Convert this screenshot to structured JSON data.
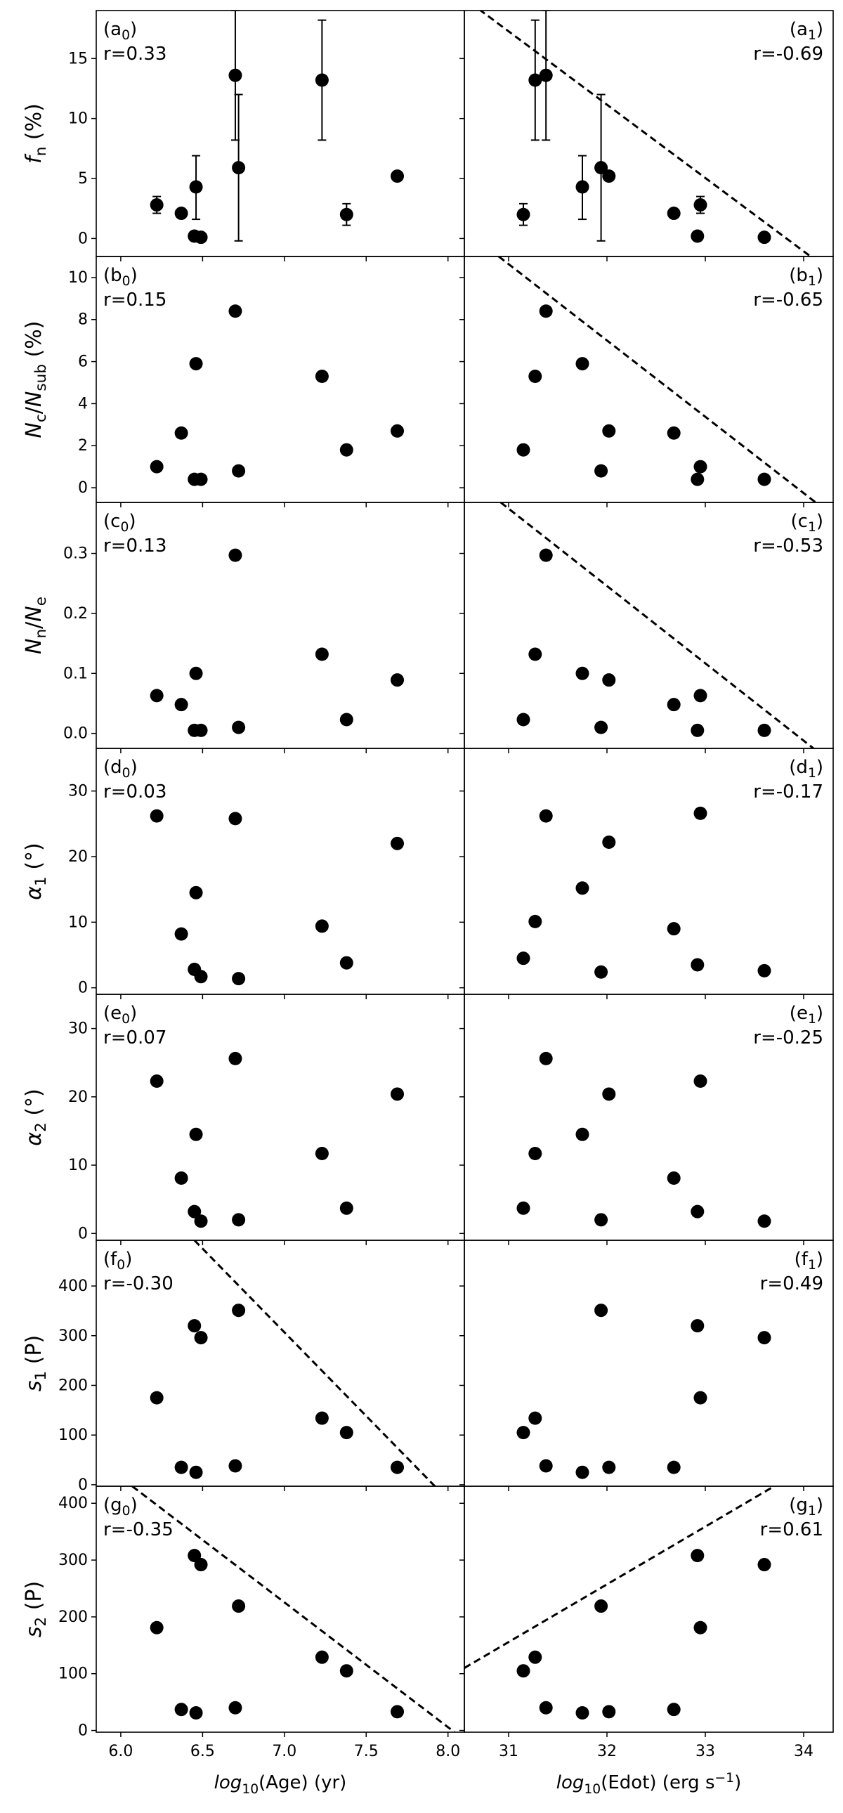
{
  "figure": {
    "x_axis_labels": {
      "left": "log10(Age) (yr)",
      "right": "log10(Edot) (erg s^-1)"
    }
  },
  "chart_data": [
    {
      "id": "a0",
      "panel": "(a0)",
      "r": "r=0.33",
      "type": "scatter",
      "ylabel": "f_n (%)",
      "ylim": [
        -1.5,
        19
      ],
      "yticks": [
        0,
        5,
        10,
        15
      ],
      "xlim": [
        5.85,
        8.1
      ],
      "xticks": [
        6.0,
        6.5,
        7.0,
        7.5,
        8.0
      ],
      "points": [
        {
          "x": 6.22,
          "y": 2.8,
          "err": [
            0.7,
            0.7
          ]
        },
        {
          "x": 6.37,
          "y": 2.1
        },
        {
          "x": 6.45,
          "y": 0.2
        },
        {
          "x": 6.46,
          "y": 4.3,
          "err": [
            2.7,
            2.6
          ]
        },
        {
          "x": 6.49,
          "y": 0.1
        },
        {
          "x": 6.7,
          "y": 13.6,
          "err": [
            5.4,
            5.4
          ]
        },
        {
          "x": 6.72,
          "y": 5.9,
          "err": [
            6.1,
            6.1
          ]
        },
        {
          "x": 7.23,
          "y": 13.2,
          "err": [
            5.0,
            5.0
          ]
        },
        {
          "x": 7.38,
          "y": 2.0,
          "err": [
            0.9,
            0.9
          ]
        },
        {
          "x": 7.69,
          "y": 5.2
        }
      ]
    },
    {
      "id": "a1",
      "panel": "(a1)",
      "r": "r=-0.69",
      "type": "scatter",
      "ylim": [
        -1.5,
        19
      ],
      "yticks": [
        0,
        5,
        10,
        15
      ],
      "xlim": [
        30.55,
        34.3
      ],
      "xticks": [
        31,
        32,
        33,
        34
      ],
      "fit_line": [
        [
          30.7,
          19.1
        ],
        [
          34.12,
          -1.8
        ]
      ],
      "points": [
        {
          "x": 31.15,
          "y": 2.0,
          "err": [
            0.9,
            0.9
          ]
        },
        {
          "x": 31.27,
          "y": 13.2,
          "err": [
            5.0,
            5.0
          ]
        },
        {
          "x": 31.38,
          "y": 13.6,
          "err": [
            5.4,
            5.4
          ]
        },
        {
          "x": 31.75,
          "y": 4.3,
          "err": [
            2.7,
            2.6
          ]
        },
        {
          "x": 31.94,
          "y": 5.9,
          "err": [
            6.1,
            6.1
          ]
        },
        {
          "x": 32.02,
          "y": 5.2
        },
        {
          "x": 32.68,
          "y": 2.1
        },
        {
          "x": 32.92,
          "y": 0.2
        },
        {
          "x": 32.95,
          "y": 2.8,
          "err": [
            0.7,
            0.7
          ]
        },
        {
          "x": 33.6,
          "y": 0.1
        }
      ]
    },
    {
      "id": "b0",
      "panel": "(b0)",
      "r": "r=0.15",
      "type": "scatter",
      "ylabel": "N_c/N_sub (%)",
      "ylim": [
        -0.7,
        11.0
      ],
      "yticks": [
        0,
        2,
        4,
        6,
        8,
        10
      ],
      "xlim": [
        5.85,
        8.1
      ],
      "xticks": [
        6.0,
        6.5,
        7.0,
        7.5,
        8.0
      ],
      "points": [
        {
          "x": 6.22,
          "y": 1.0
        },
        {
          "x": 6.37,
          "y": 2.6
        },
        {
          "x": 6.45,
          "y": 0.4
        },
        {
          "x": 6.46,
          "y": 5.9
        },
        {
          "x": 6.49,
          "y": 0.4
        },
        {
          "x": 6.7,
          "y": 8.4
        },
        {
          "x": 6.72,
          "y": 0.8
        },
        {
          "x": 7.23,
          "y": 5.3
        },
        {
          "x": 7.38,
          "y": 1.8
        },
        {
          "x": 7.69,
          "y": 2.7
        }
      ]
    },
    {
      "id": "b1",
      "panel": "(b1)",
      "r": "r=-0.65",
      "type": "scatter",
      "ylim": [
        -0.7,
        11.0
      ],
      "yticks": [
        0,
        2,
        4,
        6,
        8,
        10
      ],
      "xlim": [
        30.55,
        34.3
      ],
      "xticks": [
        31,
        32,
        33,
        34
      ],
      "fit_line": [
        [
          30.9,
          11.0
        ],
        [
          34.15,
          -0.8
        ]
      ],
      "points": [
        {
          "x": 31.15,
          "y": 1.8
        },
        {
          "x": 31.27,
          "y": 5.3
        },
        {
          "x": 31.38,
          "y": 8.4
        },
        {
          "x": 31.75,
          "y": 5.9
        },
        {
          "x": 31.94,
          "y": 0.8
        },
        {
          "x": 32.02,
          "y": 2.7
        },
        {
          "x": 32.68,
          "y": 2.6
        },
        {
          "x": 32.92,
          "y": 0.4
        },
        {
          "x": 32.95,
          "y": 1.0
        },
        {
          "x": 33.6,
          "y": 0.4
        }
      ]
    },
    {
      "id": "c0",
      "panel": "(c0)",
      "r": "r=0.13",
      "type": "scatter",
      "ylabel": "N_n/N_e",
      "ylim": [
        -0.025,
        0.385
      ],
      "yticks": [
        0.0,
        0.1,
        0.2,
        0.3
      ],
      "yticklabels": [
        "0.0",
        "0.1",
        "0.2",
        "0.3"
      ],
      "xlim": [
        5.85,
        8.1
      ],
      "xticks": [
        6.0,
        6.5,
        7.0,
        7.5,
        8.0
      ],
      "points": [
        {
          "x": 6.22,
          "y": 0.063
        },
        {
          "x": 6.37,
          "y": 0.048
        },
        {
          "x": 6.45,
          "y": 0.005
        },
        {
          "x": 6.46,
          "y": 0.1
        },
        {
          "x": 6.49,
          "y": 0.005
        },
        {
          "x": 6.7,
          "y": 0.297
        },
        {
          "x": 6.72,
          "y": 0.01
        },
        {
          "x": 7.23,
          "y": 0.132
        },
        {
          "x": 7.38,
          "y": 0.023
        },
        {
          "x": 7.69,
          "y": 0.089
        }
      ]
    },
    {
      "id": "c1",
      "panel": "(c1)",
      "r": "r=-0.53",
      "type": "scatter",
      "ylim": [
        -0.025,
        0.385
      ],
      "yticks": [
        0.0,
        0.1,
        0.2,
        0.3
      ],
      "yticklabels": [
        "0.0",
        "0.1",
        "0.2",
        "0.3"
      ],
      "xlim": [
        30.55,
        34.3
      ],
      "xticks": [
        31,
        32,
        33,
        34
      ],
      "fit_line": [
        [
          30.92,
          0.385
        ],
        [
          34.1,
          -0.025
        ]
      ],
      "points": [
        {
          "x": 31.15,
          "y": 0.023
        },
        {
          "x": 31.27,
          "y": 0.132
        },
        {
          "x": 31.38,
          "y": 0.297
        },
        {
          "x": 31.75,
          "y": 0.1
        },
        {
          "x": 31.94,
          "y": 0.01
        },
        {
          "x": 32.02,
          "y": 0.089
        },
        {
          "x": 32.68,
          "y": 0.048
        },
        {
          "x": 32.92,
          "y": 0.005
        },
        {
          "x": 32.95,
          "y": 0.063
        },
        {
          "x": 33.6,
          "y": 0.005
        }
      ]
    },
    {
      "id": "d0",
      "panel": "(d0)",
      "r": "r=0.03",
      "type": "scatter",
      "ylabel": "α_1 (°)",
      "ylim": [
        -1.0,
        36.5
      ],
      "yticks": [
        0,
        10,
        20,
        30
      ],
      "xlim": [
        5.85,
        8.1
      ],
      "xticks": [
        6.0,
        6.5,
        7.0,
        7.5,
        8.0
      ],
      "points": [
        {
          "x": 6.22,
          "y": 26.2
        },
        {
          "x": 6.37,
          "y": 8.2
        },
        {
          "x": 6.45,
          "y": 2.8
        },
        {
          "x": 6.46,
          "y": 14.5
        },
        {
          "x": 6.49,
          "y": 1.7
        },
        {
          "x": 6.7,
          "y": 25.8
        },
        {
          "x": 6.72,
          "y": 1.4
        },
        {
          "x": 7.23,
          "y": 9.4
        },
        {
          "x": 7.38,
          "y": 3.8
        },
        {
          "x": 7.69,
          "y": 22.0
        }
      ]
    },
    {
      "id": "d1",
      "panel": "(d1)",
      "r": "r=-0.17",
      "type": "scatter",
      "ylim": [
        -1.0,
        36.5
      ],
      "yticks": [
        0,
        10,
        20,
        30
      ],
      "xlim": [
        30.55,
        34.3
      ],
      "xticks": [
        31,
        32,
        33,
        34
      ],
      "points": [
        {
          "x": 31.15,
          "y": 4.5
        },
        {
          "x": 31.27,
          "y": 10.1
        },
        {
          "x": 31.38,
          "y": 26.2
        },
        {
          "x": 31.75,
          "y": 15.2
        },
        {
          "x": 31.94,
          "y": 2.4
        },
        {
          "x": 32.02,
          "y": 22.2
        },
        {
          "x": 32.68,
          "y": 9.0
        },
        {
          "x": 32.92,
          "y": 3.5
        },
        {
          "x": 32.95,
          "y": 26.6
        },
        {
          "x": 33.6,
          "y": 2.6
        }
      ]
    },
    {
      "id": "e0",
      "panel": "(e0)",
      "r": "r=0.07",
      "type": "scatter",
      "ylabel": "α_2 (°)",
      "ylim": [
        -1.0,
        35.0
      ],
      "yticks": [
        0,
        10,
        20,
        30
      ],
      "xlim": [
        5.85,
        8.1
      ],
      "xticks": [
        6.0,
        6.5,
        7.0,
        7.5,
        8.0
      ],
      "points": [
        {
          "x": 6.22,
          "y": 22.3
        },
        {
          "x": 6.37,
          "y": 8.1
        },
        {
          "x": 6.45,
          "y": 3.2
        },
        {
          "x": 6.46,
          "y": 14.5
        },
        {
          "x": 6.49,
          "y": 1.8
        },
        {
          "x": 6.7,
          "y": 25.6
        },
        {
          "x": 6.72,
          "y": 2.0
        },
        {
          "x": 7.23,
          "y": 11.7
        },
        {
          "x": 7.38,
          "y": 3.7
        },
        {
          "x": 7.69,
          "y": 20.4
        }
      ]
    },
    {
      "id": "e1",
      "panel": "(e1)",
      "r": "r=-0.25",
      "type": "scatter",
      "ylim": [
        -1.0,
        35.0
      ],
      "yticks": [
        0,
        10,
        20,
        30
      ],
      "xlim": [
        30.55,
        34.3
      ],
      "xticks": [
        31,
        32,
        33,
        34
      ],
      "points": [
        {
          "x": 31.15,
          "y": 3.7
        },
        {
          "x": 31.27,
          "y": 11.7
        },
        {
          "x": 31.38,
          "y": 25.6
        },
        {
          "x": 31.75,
          "y": 14.5
        },
        {
          "x": 31.94,
          "y": 2.0
        },
        {
          "x": 32.02,
          "y": 20.4
        },
        {
          "x": 32.68,
          "y": 8.1
        },
        {
          "x": 32.92,
          "y": 3.2
        },
        {
          "x": 32.95,
          "y": 22.3
        },
        {
          "x": 33.6,
          "y": 1.8
        }
      ]
    },
    {
      "id": "f0",
      "panel": "(f0)",
      "r": "r=-0.30",
      "type": "scatter",
      "ylabel": "s_1 (P)",
      "ylim": [
        -3,
        492
      ],
      "yticks": [
        0,
        100,
        200,
        300,
        400
      ],
      "xlim": [
        5.85,
        8.1
      ],
      "xticks": [
        6.0,
        6.5,
        7.0,
        7.5,
        8.0
      ],
      "fit_line": [
        [
          6.45,
          492
        ],
        [
          7.92,
          -3
        ]
      ],
      "points": [
        {
          "x": 6.22,
          "y": 175
        },
        {
          "x": 6.37,
          "y": 35
        },
        {
          "x": 6.45,
          "y": 320
        },
        {
          "x": 6.46,
          "y": 25
        },
        {
          "x": 6.49,
          "y": 296
        },
        {
          "x": 6.7,
          "y": 38
        },
        {
          "x": 6.72,
          "y": 351
        },
        {
          "x": 7.23,
          "y": 134
        },
        {
          "x": 7.38,
          "y": 105
        },
        {
          "x": 7.69,
          "y": 35
        }
      ]
    },
    {
      "id": "f1",
      "panel": "(f1)",
      "r": "r=0.49",
      "type": "scatter",
      "ylim": [
        -3,
        492
      ],
      "yticks": [
        0,
        100,
        200,
        300,
        400
      ],
      "xlim": [
        30.55,
        34.3
      ],
      "xticks": [
        31,
        32,
        33,
        34
      ],
      "points": [
        {
          "x": 31.15,
          "y": 105
        },
        {
          "x": 31.27,
          "y": 134
        },
        {
          "x": 31.38,
          "y": 38
        },
        {
          "x": 31.75,
          "y": 25
        },
        {
          "x": 31.94,
          "y": 351
        },
        {
          "x": 32.02,
          "y": 35
        },
        {
          "x": 32.68,
          "y": 35
        },
        {
          "x": 32.92,
          "y": 320
        },
        {
          "x": 32.95,
          "y": 175
        },
        {
          "x": 33.6,
          "y": 296
        }
      ]
    },
    {
      "id": "g0",
      "panel": "(g0)",
      "r": "r=-0.35",
      "type": "scatter",
      "ylabel": "s_2 (P)",
      "ylim": [
        -3,
        430
      ],
      "yticks": [
        0,
        100,
        200,
        300,
        400
      ],
      "xlim": [
        5.85,
        8.1
      ],
      "xticks": [
        6.0,
        6.5,
        7.0,
        7.5,
        8.0
      ],
      "xlabel": "log10(Age) (yr)",
      "fit_line": [
        [
          6.07,
          430
        ],
        [
          8.04,
          -3
        ]
      ],
      "points": [
        {
          "x": 6.22,
          "y": 181
        },
        {
          "x": 6.37,
          "y": 37
        },
        {
          "x": 6.45,
          "y": 308
        },
        {
          "x": 6.46,
          "y": 31
        },
        {
          "x": 6.49,
          "y": 292
        },
        {
          "x": 6.7,
          "y": 40
        },
        {
          "x": 6.72,
          "y": 219
        },
        {
          "x": 7.23,
          "y": 129
        },
        {
          "x": 7.38,
          "y": 105
        },
        {
          "x": 7.69,
          "y": 33
        }
      ]
    },
    {
      "id": "g1",
      "panel": "(g1)",
      "r": "r=0.61",
      "type": "scatter",
      "ylim": [
        -3,
        430
      ],
      "yticks": [
        0,
        100,
        200,
        300,
        400
      ],
      "xlim": [
        30.55,
        34.3
      ],
      "xticks": [
        31,
        32,
        33,
        34
      ],
      "xlabel": "log10(Edot) (erg s^-1)",
      "fit_line": [
        [
          30.55,
          110
        ],
        [
          33.7,
          430
        ]
      ],
      "points": [
        {
          "x": 31.15,
          "y": 105
        },
        {
          "x": 31.27,
          "y": 129
        },
        {
          "x": 31.38,
          "y": 40
        },
        {
          "x": 31.75,
          "y": 31
        },
        {
          "x": 31.94,
          "y": 219
        },
        {
          "x": 32.02,
          "y": 33
        },
        {
          "x": 32.68,
          "y": 37
        },
        {
          "x": 32.92,
          "y": 308
        },
        {
          "x": 32.95,
          "y": 181
        },
        {
          "x": 33.6,
          "y": 292
        }
      ]
    }
  ]
}
